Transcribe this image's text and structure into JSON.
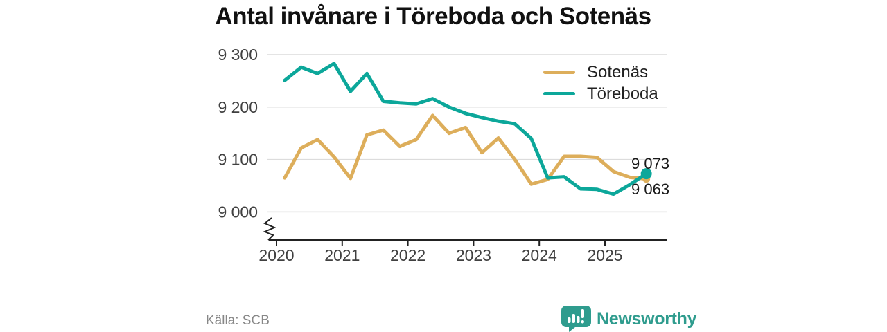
{
  "title": "Antal invånare i Töreboda och Sotenäs",
  "source": {
    "label": "Källa: SCB"
  },
  "brand": {
    "name": "Newsworthy"
  },
  "colors": {
    "sotenas": "#DDAE5B",
    "toreboda": "#0CA79A",
    "grid": "#DCDCDC",
    "axis": "#222222",
    "tick_label": "#404040",
    "title": "#111111",
    "end_label": "#1A1A1A",
    "source_text": "#878787",
    "brand_teal": "#2F9C8E",
    "background": "#FFFFFF"
  },
  "legend": {
    "items": [
      {
        "label": "Sotenäs"
      },
      {
        "label": "Töreboda"
      }
    ]
  },
  "chart_data": {
    "type": "line",
    "title": "Antal invånare i Töreboda och Sotenäs",
    "xlabel": "",
    "ylabel": "",
    "x_unit": "quarter",
    "x_categories": [
      "2020-Q1",
      "2020-Q2",
      "2020-Q3",
      "2020-Q4",
      "2021-Q1",
      "2021-Q2",
      "2021-Q3",
      "2021-Q4",
      "2022-Q1",
      "2022-Q2",
      "2022-Q3",
      "2022-Q4",
      "2023-Q1",
      "2023-Q2",
      "2023-Q3",
      "2023-Q4",
      "2024-Q1",
      "2024-Q2",
      "2024-Q3",
      "2024-Q4",
      "2025-Q1",
      "2025-Q2",
      "2025-Q3"
    ],
    "x_tick_labels": [
      "2020",
      "2021",
      "2022",
      "2023",
      "2024",
      "2025"
    ],
    "y_ticks": [
      9300,
      9200,
      9100,
      9000
    ],
    "y_tick_labels": [
      "9 300",
      "9 200",
      "9 100",
      "9 000"
    ],
    "ylim": [
      9000,
      9300
    ],
    "axis_break": true,
    "grid": "horizontal",
    "legend_position": "top-right",
    "series": [
      {
        "name": "Sotenäs",
        "color": "#DDAE5B",
        "end_label": "9 063",
        "end_value": 9063,
        "values": [
          9065,
          9122,
          9138,
          9105,
          9064,
          9147,
          9156,
          9125,
          9138,
          9184,
          9150,
          9161,
          9113,
          9141,
          9100,
          9053,
          9062,
          9106,
          9106,
          9104,
          9077,
          9066,
          9063
        ]
      },
      {
        "name": "Töreboda",
        "color": "#0CA79A",
        "end_label": "9 073",
        "end_value": 9073,
        "values": [
          9251,
          9276,
          9264,
          9283,
          9230,
          9264,
          9211,
          9208,
          9206,
          9216,
          9200,
          9188,
          9180,
          9173,
          9168,
          9140,
          9065,
          9067,
          9044,
          9043,
          9034,
          9052,
          9073
        ]
      }
    ]
  }
}
